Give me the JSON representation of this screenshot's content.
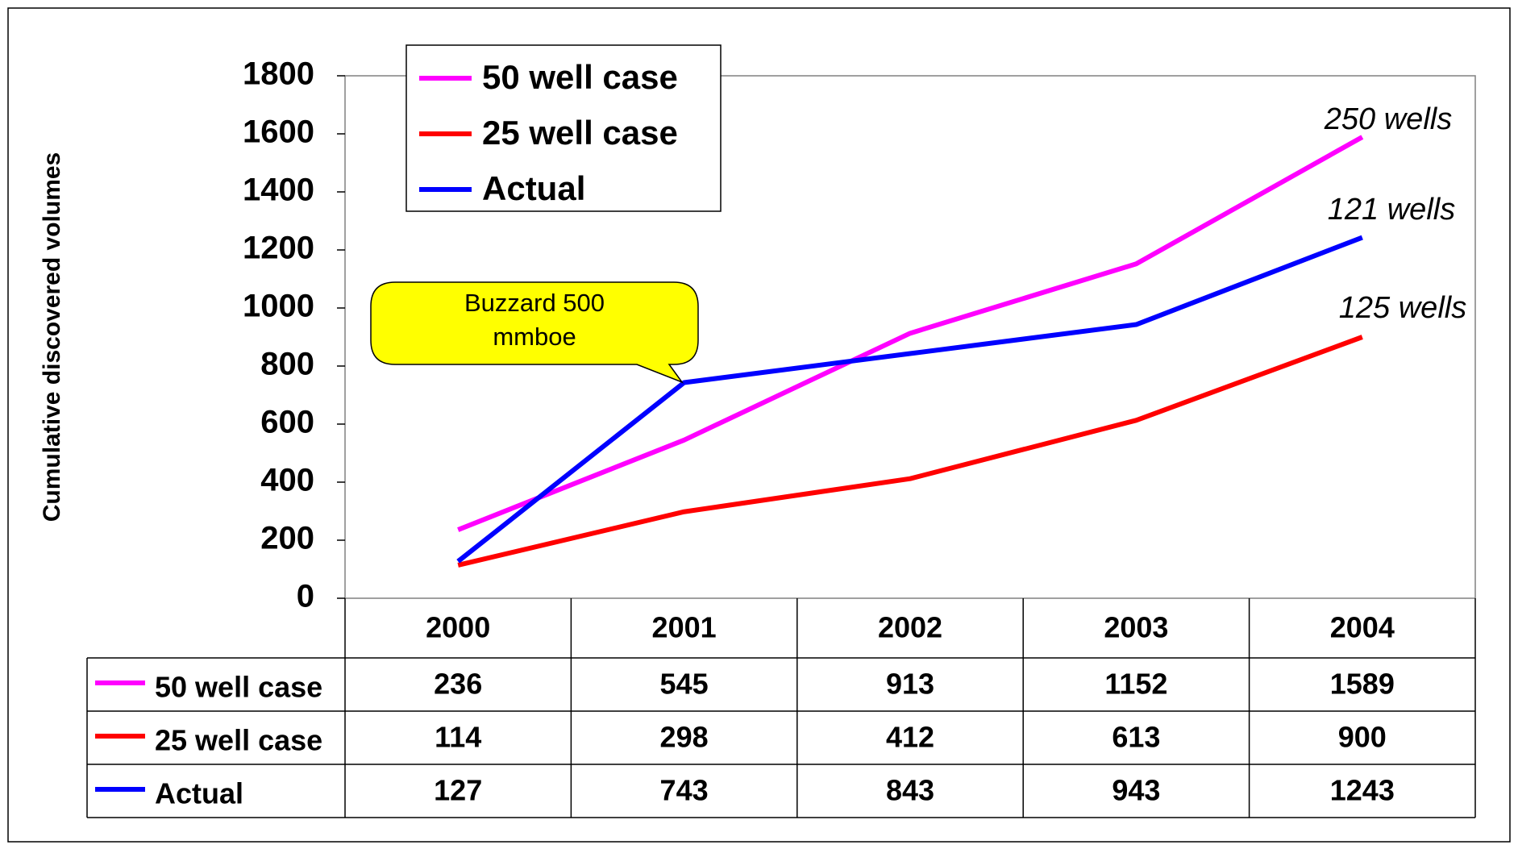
{
  "chart_data": {
    "type": "line",
    "y_label": "Cumulative discovered volumes",
    "categories": [
      "2000",
      "2001",
      "2002",
      "2003",
      "2004"
    ],
    "series": [
      {
        "name": "50 well case",
        "color": "#ff00ff",
        "values": [
          236,
          545,
          913,
          1152,
          1589
        ]
      },
      {
        "name": "25 well case",
        "color": "#ff0000",
        "values": [
          114,
          298,
          412,
          613,
          900
        ]
      },
      {
        "name": "Actual",
        "color": "#0000ff",
        "values": [
          127,
          743,
          843,
          943,
          1243
        ]
      }
    ],
    "ylim": [
      0,
      1800
    ],
    "yticks": [
      0,
      200,
      400,
      600,
      800,
      1000,
      1200,
      1400,
      1600,
      1800
    ],
    "legend": "top-left",
    "annotations": [
      "250 wells",
      "121 wells",
      "125 wells"
    ],
    "callout": "Buzzard 500 mmboe"
  }
}
